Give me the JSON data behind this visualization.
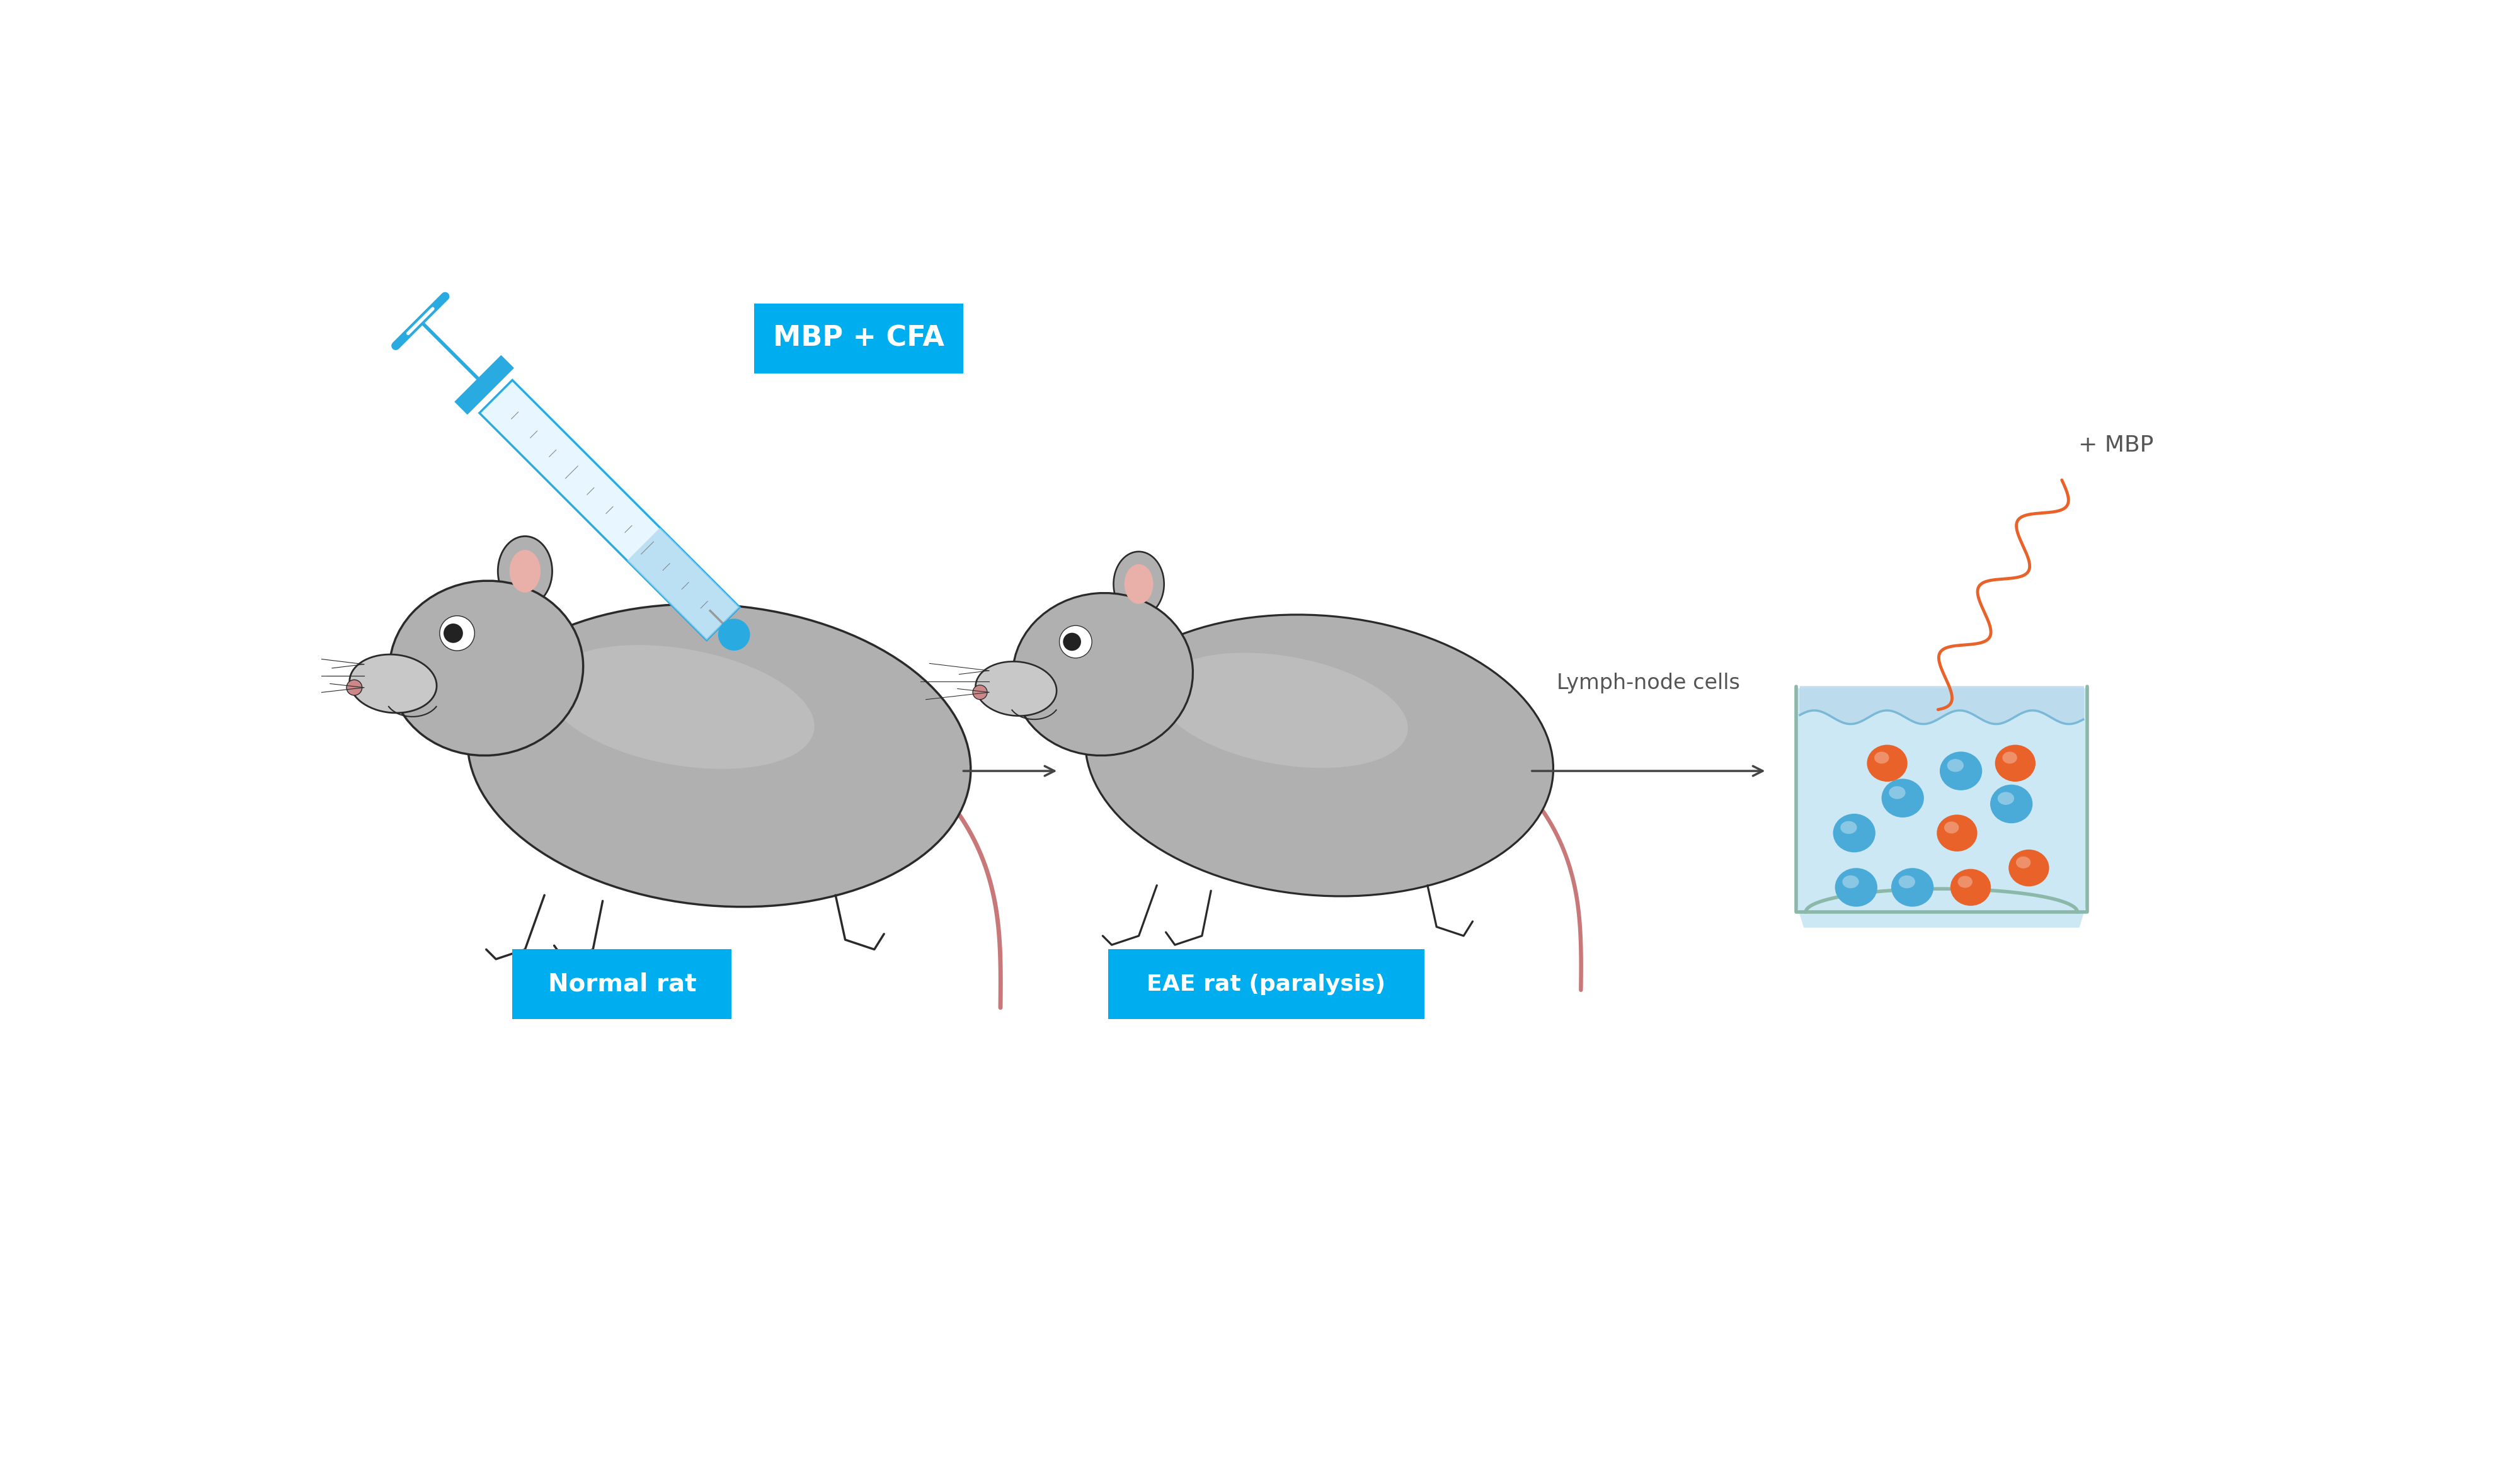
{
  "bg_color": "#ffffff",
  "cyan_label_color": "#00AEEF",
  "label_text_color": "#ffffff",
  "arrow_color": "#444444",
  "rat_body_color": "#b0b0b0",
  "rat_light_color": "#c8c8c8",
  "rat_outline_color": "#2a2a2a",
  "rat_tail_color": "#c87878",
  "beaker_fill_color": "#cce8f4",
  "beaker_border_color": "#8bb8a8",
  "beaker_water_color": "#b8d8ec",
  "orange_cell_color": "#E8622A",
  "blue_cell_color": "#4AAAD8",
  "wavy_arrow_color": "#E8622A",
  "syringe_blue": "#29ABE2",
  "syringe_barrel": "#e8f6ff",
  "label1": "MBP + CFA",
  "label2": "Normal rat",
  "label3": "EAE rat (paralysis)",
  "label4": "Lymph-node cells",
  "label5": "+ MBP",
  "figure_width": 40,
  "figure_height": 23.34,
  "xlim": [
    0,
    10
  ],
  "ylim": [
    0,
    5.835
  ]
}
